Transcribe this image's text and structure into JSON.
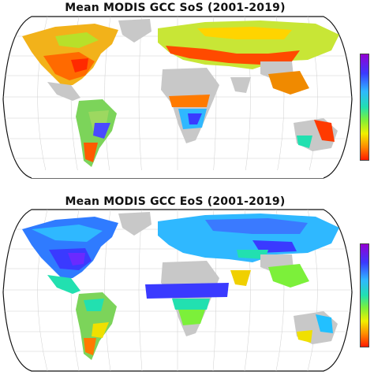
{
  "panels": [
    {
      "title": "Mean MODIS GCC SoS (2001-2019)",
      "variable": "SoS"
    },
    {
      "title": "Mean MODIS GCC EoS (2001-2019)",
      "variable": "EoS"
    }
  ],
  "projection": "Robinson",
  "land_nodata_color": "#c8c8c8",
  "ocean_color": "#ffffff",
  "colorbar": {
    "colors_top_to_bottom": [
      "#9400d3",
      "#3a3aff",
      "#2fb8ff",
      "#22e0b0",
      "#7cf03a",
      "#f0f000",
      "#ff8800",
      "#ff1a00"
    ],
    "tick_labels_visible": false
  }
}
